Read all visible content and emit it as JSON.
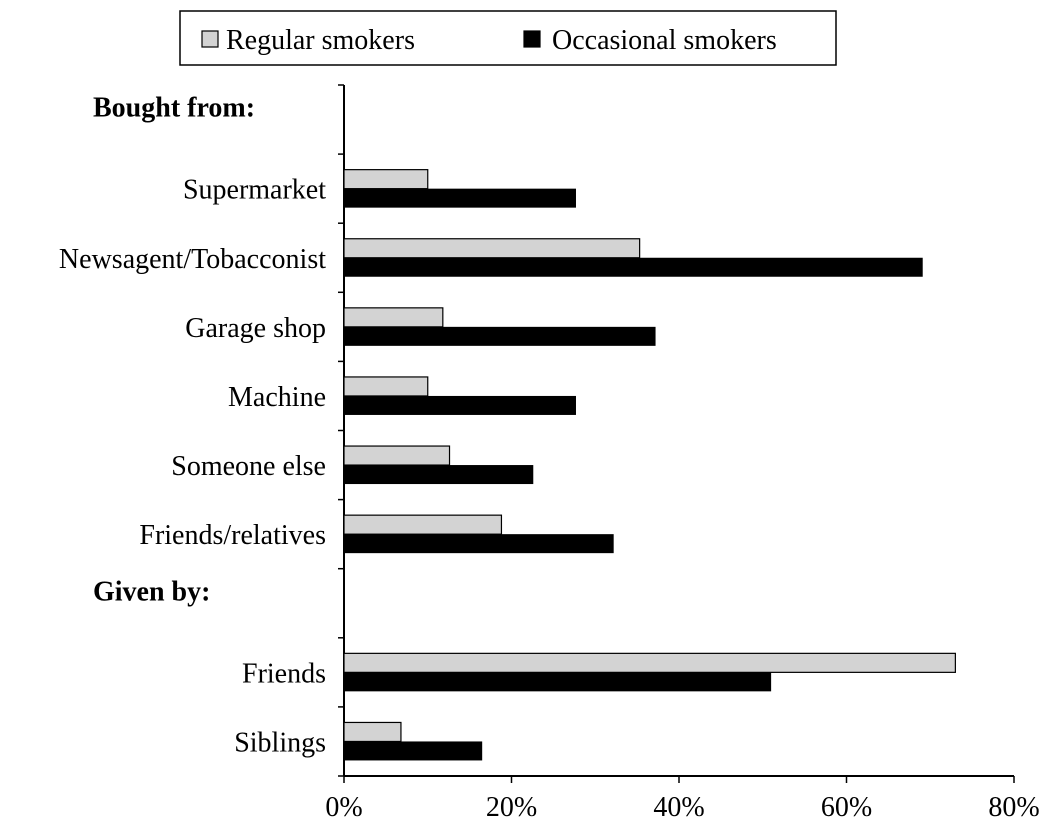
{
  "chart_data": {
    "type": "bar",
    "orientation": "horizontal",
    "rows": [
      {
        "kind": "group",
        "label": "Bought from:"
      },
      {
        "kind": "category",
        "label": "Supermarket"
      },
      {
        "kind": "category",
        "label": "Newsagent/Tobacconist"
      },
      {
        "kind": "category",
        "label": "Garage shop"
      },
      {
        "kind": "category",
        "label": "Machine"
      },
      {
        "kind": "category",
        "label": "Someone else"
      },
      {
        "kind": "category",
        "label": "Friends/relatives"
      },
      {
        "kind": "group",
        "label": "Given by:"
      },
      {
        "kind": "category",
        "label": "Friends"
      },
      {
        "kind": "category",
        "label": "Siblings"
      }
    ],
    "categories": [
      "Supermarket",
      "Newsagent/Tobacconist",
      "Garage shop",
      "Machine",
      "Someone else",
      "Friends/relatives",
      "Friends",
      "Siblings"
    ],
    "series": [
      {
        "name": "Regular smokers",
        "color": "#d3d3d3",
        "values": [
          10,
          35.3,
          11.8,
          10,
          12.6,
          18.8,
          73,
          6.8
        ]
      },
      {
        "name": "Occasional smokers",
        "color": "#000000",
        "values": [
          27.7,
          69.1,
          37.2,
          27.7,
          22.6,
          32.2,
          51,
          16.5
        ]
      }
    ],
    "x_ticks": [
      "0%",
      "20%",
      "40%",
      "60%",
      "80%"
    ],
    "xlim": [
      0,
      80
    ],
    "legend_position": "top",
    "grid": false
  }
}
